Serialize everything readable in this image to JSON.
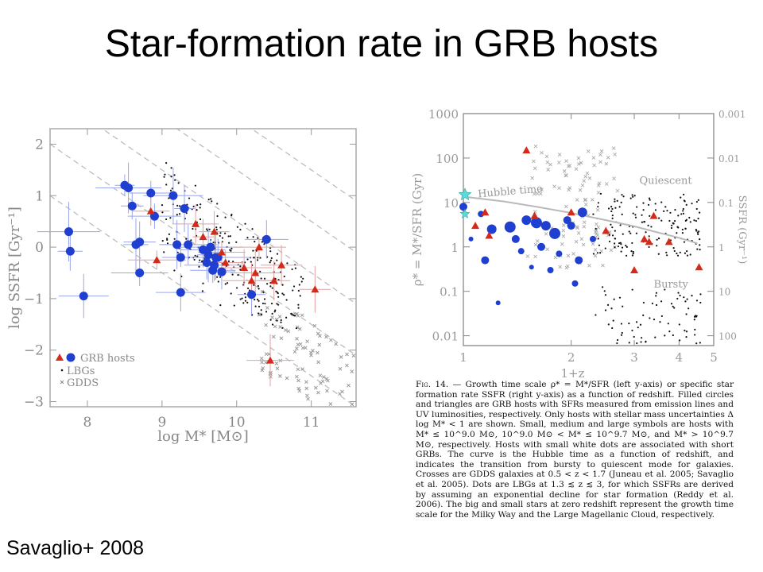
{
  "slide": {
    "title": "Star-formation rate in GRB hosts",
    "credit": "Savaglio+ 2008"
  },
  "chart_data": [
    {
      "type": "scatter",
      "xlabel": "log M* [M⊙]",
      "ylabel": "log SSFR [Gyr⁻¹]",
      "xlim": [
        7.5,
        11.6
      ],
      "ylim": [
        -3.1,
        2.3
      ],
      "xticks": [
        "8",
        "9",
        "10",
        "11"
      ],
      "yticks": [
        "2",
        "1",
        "0",
        "−1",
        "−2",
        "−3"
      ],
      "legend": [
        "GRB hosts",
        "LBGs",
        "GDDS"
      ],
      "legend_position": "bottom-left",
      "grid": false,
      "series": [
        {
          "name": "GRB hosts",
          "marker": "circle",
          "color": "#1f3fd0",
          "x": [
            7.75,
            7.77,
            7.95,
            8.5,
            8.55,
            8.6,
            8.65,
            8.7,
            8.7,
            8.85,
            8.9,
            9.15,
            9.2,
            9.25,
            9.25,
            9.3,
            9.35,
            9.55,
            9.6,
            9.62,
            9.65,
            9.68,
            9.7,
            9.72,
            9.75,
            9.8,
            10.2,
            10.4
          ],
          "y": [
            0.3,
            -0.08,
            -0.95,
            1.2,
            1.15,
            0.8,
            0.05,
            0.1,
            -0.5,
            1.05,
            0.6,
            1.0,
            0.05,
            -0.2,
            -0.88,
            0.75,
            0.05,
            -0.05,
            -0.3,
            -0.15,
            0.0,
            -0.45,
            -0.35,
            -0.2,
            -0.2,
            -0.48,
            -0.92,
            0.15
          ]
        },
        {
          "name": "GRB hosts",
          "marker": "triangle",
          "color": "#d42a1a",
          "x": [
            8.85,
            8.93,
            9.45,
            9.55,
            9.7,
            9.8,
            9.85,
            10.1,
            10.2,
            10.25,
            10.3,
            10.45,
            10.5,
            10.6,
            11.05
          ],
          "y": [
            0.7,
            -0.25,
            0.45,
            0.2,
            0.3,
            -0.1,
            -0.3,
            -0.4,
            -0.65,
            -0.5,
            0.0,
            -2.2,
            -0.65,
            -0.35,
            -0.82
          ]
        },
        {
          "name": "LBGs",
          "marker": "dot",
          "color": "#000000"
        },
        {
          "name": "GDDS",
          "marker": "cross",
          "color": "#888888"
        }
      ]
    },
    {
      "type": "scatter",
      "xlabel": "1+z",
      "ylabel": "ρ* = M*/SFR (Gyr)",
      "ylabel_right": "SSFR (Gyr⁻¹)",
      "xscale": "log",
      "yscale": "log",
      "xlim": [
        1,
        5
      ],
      "ylim": [
        0.006,
        1000
      ],
      "xticks": [
        "1",
        "2",
        "3",
        "4",
        "5"
      ],
      "yticks": [
        "1000",
        "100",
        "10",
        "1",
        "0.1",
        "0.01"
      ],
      "yticks_right": [
        "0.001",
        "0.01",
        "0.1",
        "1",
        "10",
        "100"
      ],
      "annotations": [
        "Hubble time",
        "Quiescent",
        "Bursty"
      ],
      "curve_hubble_time": {
        "x": [
          1,
          1.3,
          1.6,
          2,
          2.5,
          3,
          3.5,
          4,
          4.5
        ],
        "y": [
          13.5,
          10.5,
          8.0,
          5.8,
          4.0,
          2.9,
          2.1,
          1.6,
          1.2
        ]
      },
      "series": [
        {
          "name": "GRB hosts",
          "marker": "circle",
          "color": "#1f3fd0",
          "x": [
            1.0,
            1.05,
            1.12,
            1.15,
            1.2,
            1.25,
            1.35,
            1.4,
            1.45,
            1.5,
            1.55,
            1.6,
            1.65,
            1.7,
            1.75,
            1.8,
            1.85,
            1.95,
            2.0,
            2.05,
            2.1,
            2.15,
            2.3
          ],
          "y": [
            8,
            1.5,
            5.5,
            0.5,
            2.5,
            0.055,
            2.8,
            1.5,
            0.8,
            4.0,
            0.35,
            3.5,
            1.0,
            3.0,
            0.3,
            2.0,
            0.7,
            4.0,
            3.0,
            0.15,
            0.5,
            6.0,
            1.5
          ]
        },
        {
          "name": "GRB hosts",
          "marker": "triangle",
          "color": "#d42a1a",
          "x": [
            1.08,
            1.15,
            1.18,
            1.5,
            1.58,
            2.0,
            2.5,
            3.0,
            3.2,
            3.3,
            3.4,
            3.75,
            4.55
          ],
          "y": [
            3.0,
            6.0,
            1.8,
            150,
            5.0,
            6.0,
            2.3,
            0.3,
            1.5,
            1.3,
            5.0,
            1.3,
            0.35
          ]
        },
        {
          "name": "Milky Way / LMC",
          "marker": "star",
          "color": "#5ed8d8",
          "x": [
            1.0,
            1.0
          ],
          "y": [
            15,
            5.5
          ]
        },
        {
          "name": "LBGs",
          "marker": "dot",
          "color": "#000000"
        },
        {
          "name": "GDDS",
          "marker": "cross",
          "color": "#999999"
        }
      ]
    }
  ],
  "caption": {
    "figno": "Fig. 14.",
    "text": "— Growth time scale ρ* = M*/SFR (left y-axis) or specific star formation rate SSFR (right y-axis) as a function of redshift. Filled circles and triangles are GRB hosts with SFRs measured from emission lines and UV luminosities, respectively. Only hosts with stellar mass uncertainties Δ log M* < 1 are shown. Small, medium and large symbols are hosts with M* ≤ 10^9.0 M⊙, 10^9.0 M⊙ < M* ≤ 10^9.7 M⊙, and M* > 10^9.7 M⊙, respectively. Hosts with small white dots are associated with short GRBs. The curve is the Hubble time as a function of redshift, and indicates the transition from bursty to quiescent mode for galaxies. Crosses are GDDS galaxies at 0.5 < z < 1.7 (Juneau et al. 2005; Savaglio et al. 2005). Dots are LBGs at 1.3 ≲ z ≲ 3, for which SSFRs are derived by assuming an exponential decline for star formation (Reddy et al. 2006). The big and small stars at zero redshift represent the growth time scale for the Milky Way and the Large Magellanic Cloud, respectively."
  }
}
